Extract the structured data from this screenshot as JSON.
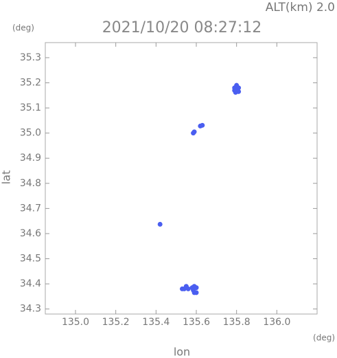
{
  "chart_data": {
    "type": "scatter",
    "title": "2021/10/20 08:27:12",
    "annotation": "ALT(km) 2.0",
    "y_unit": "(deg)",
    "x_unit": "(deg)",
    "x_label": "lon",
    "y_label": "lat",
    "xlim": [
      134.85,
      136.2
    ],
    "ylim": [
      34.28,
      35.36
    ],
    "xticks": [
      {
        "value": 135.0,
        "label": "135.0"
      },
      135.2,
      135.4,
      135.6,
      135.8,
      {
        "value": 136.0,
        "label": "136.0"
      }
    ],
    "yticks": [
      34.3,
      34.4,
      34.5,
      34.6,
      34.7,
      34.8,
      34.9,
      {
        "value": 35.0,
        "label": "35.0"
      },
      35.1,
      35.2,
      35.3
    ],
    "color": "#4a5ef0",
    "x": [
      135.79,
      135.8,
      135.81,
      135.8,
      135.79,
      135.81,
      135.795,
      135.62,
      135.63,
      135.59,
      135.585,
      135.42,
      135.54,
      135.55,
      135.56,
      135.53,
      135.58,
      135.59,
      135.6,
      135.585,
      135.59,
      135.6
    ],
    "y": [
      35.18,
      35.17,
      35.18,
      35.19,
      35.17,
      35.165,
      35.162,
      35.028,
      35.031,
      35.005,
      35.0,
      34.637,
      34.38,
      34.39,
      34.38,
      34.38,
      34.385,
      34.39,
      34.385,
      34.375,
      34.365,
      34.365
    ]
  }
}
